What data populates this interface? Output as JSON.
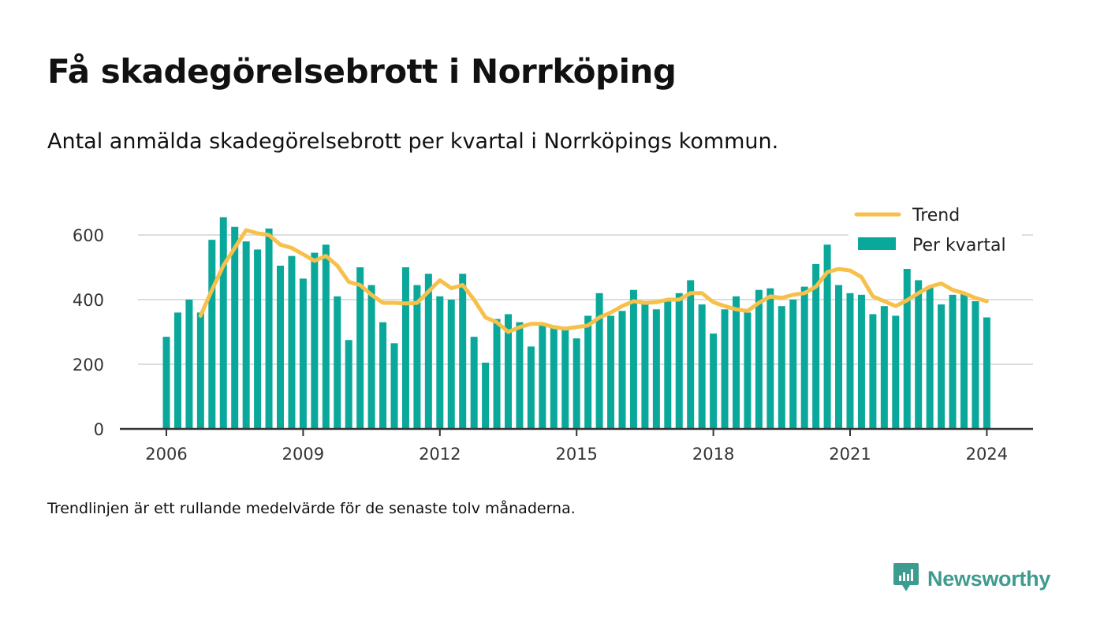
{
  "title": "Få skadegörelsebrott i Norrköping",
  "subtitle": "Antal anmälda skadegörelsebrott per kvartal i Norrköpings kommun.",
  "note": "Trendlinjen är ett rullande medelvärde för de senaste tolv månaderna.",
  "brand": "Newsworthy",
  "colors": {
    "bar": "#0aa89a",
    "trend": "#f7c04a",
    "axis": "#333333",
    "grid": "#dddddd",
    "brand": "#3e9b8f"
  },
  "chart_data": {
    "type": "bar",
    "x_start": "2006 Q1",
    "xticks": [
      "2006",
      "2009",
      "2012",
      "2015",
      "2018",
      "2021",
      "2024"
    ],
    "yticks": [
      0,
      200,
      400,
      600
    ],
    "ylim": [
      0,
      700
    ],
    "legend_position": "top-right",
    "grid": true,
    "series": [
      {
        "name": "Per kvartal",
        "type": "bar",
        "values": [
          285,
          360,
          400,
          360,
          585,
          655,
          625,
          580,
          555,
          620,
          505,
          535,
          465,
          545,
          570,
          410,
          275,
          500,
          445,
          330,
          265,
          500,
          445,
          480,
          410,
          400,
          480,
          285,
          205,
          340,
          355,
          330,
          255,
          325,
          320,
          310,
          280,
          350,
          420,
          350,
          365,
          430,
          385,
          370,
          400,
          420,
          460,
          385,
          295,
          370,
          410,
          360,
          430,
          435,
          380,
          400,
          440,
          510,
          570,
          445,
          420,
          415,
          355,
          380,
          350,
          495,
          460,
          440,
          385,
          415,
          420,
          395,
          345
        ]
      },
      {
        "name": "Trend",
        "type": "line",
        "values": [
          null,
          null,
          null,
          350,
          430,
          505,
          560,
          615,
          605,
          600,
          570,
          560,
          540,
          520,
          535,
          505,
          455,
          445,
          415,
          390,
          390,
          388,
          390,
          425,
          460,
          435,
          445,
          400,
          345,
          330,
          300,
          315,
          325,
          325,
          315,
          310,
          315,
          320,
          345,
          360,
          380,
          395,
          390,
          392,
          400,
          400,
          420,
          420,
          392,
          380,
          370,
          365,
          390,
          410,
          405,
          415,
          420,
          440,
          485,
          495,
          490,
          470,
          410,
          395,
          380,
          398,
          420,
          440,
          450,
          430,
          420,
          405,
          395
        ]
      }
    ]
  }
}
